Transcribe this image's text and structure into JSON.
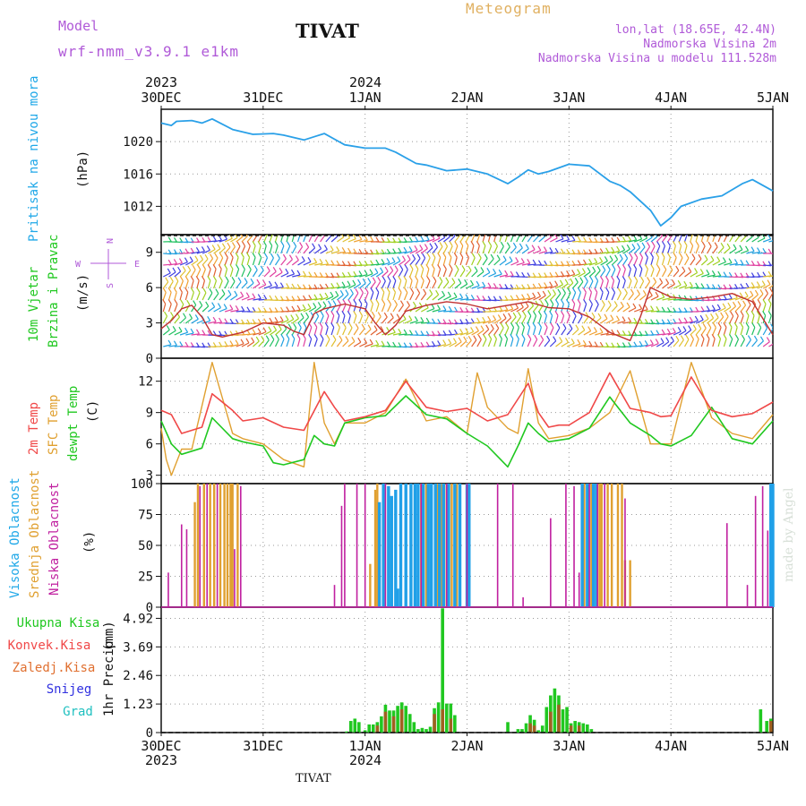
{
  "header": {
    "model_label": "Model",
    "model_name": "wrf-nmm_v3.9.1  e1km",
    "title": "TIVAT",
    "chart_kind": "Meteogram",
    "lonlat": "lon,lat (18.65E, 42.4N)",
    "elevation": "Nadmorska Visina 2m",
    "model_elevation": "Nadmorska Visina u modelu 111.528m"
  },
  "footer": {
    "station": "TIVAT",
    "credit": "made by Angel"
  },
  "time_axis": {
    "top_years": [
      "2023",
      "2024"
    ],
    "labels": [
      "30DEC",
      "31DEC",
      "1JAN",
      "2JAN",
      "3JAN",
      "4JAN",
      "5JAN"
    ],
    "bottom_years": [
      "2023",
      "2024"
    ]
  },
  "colors": {
    "pressure": "#2aa0e8",
    "temp2m": "#f04848",
    "sfc_temp": "#e0a030",
    "dewpt": "#20c820",
    "high_cloud": "#20a0e8",
    "mid_cloud": "#e0a030",
    "low_cloud": "#c020a0",
    "total_precip": "#20c820",
    "conv_precip": "#f04848",
    "frozen_precip": "#e07030",
    "snow": "#3030e0",
    "graupel": "#20c0c0"
  },
  "chart_data": [
    {
      "type": "line",
      "ylabel_name": "Pritisak na nivou mora",
      "ylabel_unit": "(hPa)",
      "yticks": [
        "1012",
        "1016",
        "1020"
      ],
      "ylim": [
        1008.5,
        1024
      ],
      "series": [
        {
          "name": "Pritisak na nivou mora",
          "x": [
            0,
            0.1,
            0.15,
            0.3,
            0.4,
            0.5,
            0.7,
            0.9,
            1.1,
            1.2,
            1.4,
            1.5,
            1.6,
            1.8,
            2.0,
            2.2,
            2.3,
            2.5,
            2.6,
            2.8,
            3.0,
            3.2,
            3.4,
            3.5,
            3.6,
            3.7,
            3.8,
            4.0,
            4.2,
            4.4,
            4.5,
            4.6,
            4.8,
            4.9,
            5.0,
            5.1,
            5.3,
            5.5,
            5.7,
            5.8,
            6.0
          ],
          "values": [
            1022.3,
            1022.0,
            1022.5,
            1022.6,
            1022.3,
            1022.8,
            1021.5,
            1020.9,
            1021.0,
            1020.8,
            1020.2,
            1020.6,
            1021.0,
            1019.6,
            1019.2,
            1019.2,
            1018.7,
            1017.3,
            1017.1,
            1016.4,
            1016.6,
            1016.0,
            1014.8,
            1015.6,
            1016.5,
            1016.0,
            1016.3,
            1017.2,
            1017.0,
            1015.1,
            1014.6,
            1013.8,
            1011.5,
            1009.6,
            1010.6,
            1012.0,
            1012.9,
            1013.3,
            1014.8,
            1015.3,
            1013.9
          ]
        }
      ]
    },
    {
      "type": "line",
      "ylabel_name": "10m Vjetar",
      "ylabel_name2": "Brzina i Pravac",
      "ylabel_unit": "(m/s)",
      "compass": {
        "n": "N",
        "s": "S",
        "e": "E",
        "w": "W"
      },
      "yticks": [
        "0",
        "3",
        "6",
        "9"
      ],
      "ylim": [
        0,
        10.5
      ],
      "series": [
        {
          "name": "wind speed",
          "x": [
            0,
            0.1,
            0.2,
            0.3,
            0.4,
            0.5,
            0.6,
            0.8,
            1.0,
            1.2,
            1.3,
            1.4,
            1.5,
            1.6,
            1.8,
            2.0,
            2.1,
            2.2,
            2.3,
            2.4,
            2.6,
            2.8,
            3.0,
            3.2,
            3.4,
            3.6,
            3.8,
            4.0,
            4.2,
            4.4,
            4.6,
            4.7,
            4.8,
            5.0,
            5.2,
            5.4,
            5.6,
            5.8,
            6.0
          ],
          "values": [
            2.5,
            3.2,
            4.2,
            4.5,
            3.5,
            2.0,
            1.8,
            2.2,
            3.0,
            2.8,
            2.3,
            2.0,
            3.8,
            4.2,
            4.6,
            4.2,
            3.0,
            2.0,
            2.8,
            4.0,
            4.5,
            4.8,
            4.6,
            4.2,
            4.5,
            4.8,
            4.3,
            4.2,
            3.5,
            2.2,
            1.5,
            3.5,
            6.0,
            5.2,
            5.0,
            5.2,
            5.5,
            4.8,
            2.0
          ]
        }
      ]
    },
    {
      "type": "line",
      "ylabel_name": "2m Temp",
      "ylabel_name2": "SFC Temp",
      "ylabel_name3": "dewpt Temp",
      "ylabel_unit": "(C)",
      "yticks": [
        "3",
        "6",
        "9",
        "12"
      ],
      "ylim": [
        2.2,
        14.2
      ],
      "series": [
        {
          "name": "2m Temp",
          "x": [
            0,
            0.1,
            0.2,
            0.4,
            0.5,
            0.7,
            0.8,
            1.0,
            1.2,
            1.4,
            1.6,
            1.7,
            1.8,
            2.0,
            2.2,
            2.4,
            2.6,
            2.8,
            3.0,
            3.2,
            3.4,
            3.6,
            3.7,
            3.8,
            3.9,
            4.0,
            4.2,
            4.4,
            4.6,
            4.8,
            4.9,
            5.0,
            5.2,
            5.4,
            5.6,
            5.8,
            6.0
          ],
          "values": [
            9.2,
            8.8,
            7.0,
            7.6,
            10.8,
            9.2,
            8.2,
            8.5,
            7.6,
            7.3,
            11.0,
            9.5,
            8.2,
            8.6,
            9.2,
            12.0,
            9.5,
            9.1,
            9.4,
            8.2,
            8.8,
            11.8,
            9.0,
            7.6,
            7.8,
            7.8,
            9.0,
            12.8,
            9.4,
            9.0,
            8.6,
            8.7,
            12.4,
            9.2,
            8.6,
            8.9,
            10.0
          ]
        },
        {
          "name": "SFC Temp",
          "x": [
            0,
            0.05,
            0.1,
            0.2,
            0.3,
            0.5,
            0.7,
            0.8,
            1.0,
            1.2,
            1.4,
            1.5,
            1.6,
            1.7,
            1.8,
            2.0,
            2.2,
            2.4,
            2.6,
            2.8,
            3.0,
            3.1,
            3.2,
            3.4,
            3.5,
            3.6,
            3.7,
            3.8,
            4.0,
            4.2,
            4.4,
            4.6,
            4.8,
            5.0,
            5.2,
            5.4,
            5.6,
            5.8,
            6.0
          ],
          "values": [
            7.5,
            4.5,
            3.0,
            5.5,
            5.5,
            13.8,
            7.0,
            6.5,
            6.0,
            4.5,
            3.8,
            13.8,
            8.0,
            6.0,
            8.0,
            8.0,
            9.0,
            12.2,
            8.2,
            8.6,
            7.0,
            12.8,
            9.5,
            7.5,
            7.0,
            13.2,
            8.0,
            6.5,
            6.8,
            7.5,
            9.0,
            13.0,
            6.0,
            6.0,
            13.8,
            8.5,
            7.0,
            6.5,
            8.8
          ]
        },
        {
          "name": "dewpt Temp",
          "x": [
            0,
            0.1,
            0.2,
            0.4,
            0.5,
            0.7,
            0.8,
            1.0,
            1.1,
            1.2,
            1.4,
            1.5,
            1.6,
            1.7,
            1.8,
            2.0,
            2.2,
            2.4,
            2.6,
            2.8,
            3.0,
            3.2,
            3.4,
            3.5,
            3.6,
            3.7,
            3.8,
            4.0,
            4.2,
            4.4,
            4.6,
            4.8,
            4.9,
            5.0,
            5.2,
            5.4,
            5.6,
            5.8,
            6.0
          ],
          "values": [
            8.2,
            6.0,
            5.0,
            5.6,
            8.5,
            6.5,
            6.2,
            5.8,
            4.2,
            4.0,
            4.5,
            6.8,
            6.0,
            5.8,
            8.0,
            8.5,
            8.7,
            10.6,
            8.8,
            8.4,
            7.0,
            5.8,
            3.8,
            5.8,
            8.0,
            7.0,
            6.2,
            6.5,
            7.5,
            10.5,
            8.0,
            6.8,
            6.0,
            5.8,
            6.8,
            9.5,
            6.5,
            6.0,
            8.2
          ]
        }
      ]
    },
    {
      "type": "bar",
      "ylabel_name": "Visoka Oblacnost",
      "ylabel_name2": "Srednja Oblacnost",
      "ylabel_name3": "Niska Oblacnost",
      "ylabel_unit": "(%)",
      "yticks": [
        "0",
        "25",
        "50",
        "75",
        "100"
      ],
      "ylim": [
        0,
        100
      ],
      "series": [
        {
          "name": "Niska Oblacnost",
          "x": [
            0.07,
            0.2,
            0.25,
            0.38,
            0.45,
            0.55,
            0.72,
            0.78,
            1.7,
            1.77,
            1.8,
            1.92,
            2.0,
            2.2,
            2.55,
            2.8,
            3.0,
            3.3,
            3.45,
            3.55,
            3.82,
            3.97,
            4.05,
            4.1,
            4.2,
            4.28,
            4.35,
            4.55,
            5.55,
            5.75,
            5.83,
            5.9,
            5.95
          ],
          "values": [
            28,
            67,
            63,
            98,
            100,
            100,
            47,
            98,
            18,
            82,
            100,
            100,
            100,
            100,
            100,
            100,
            100,
            100,
            100,
            8,
            72,
            100,
            98,
            28,
            100,
            100,
            100,
            88,
            68,
            18,
            90,
            98,
            62
          ]
        },
        {
          "name": "Srednja Oblacnost",
          "x": [
            0.33,
            0.36,
            0.42,
            0.48,
            0.52,
            0.58,
            0.62,
            0.65,
            0.68,
            0.7,
            0.75,
            2.05,
            2.1,
            2.12,
            2.55,
            2.6,
            2.65,
            2.7,
            2.72,
            2.75,
            2.8,
            2.85,
            2.9,
            4.15,
            4.22,
            4.3,
            4.32,
            4.38,
            4.42,
            4.48,
            4.52,
            4.55,
            4.6
          ],
          "values": [
            85,
            100,
            100,
            100,
            100,
            100,
            100,
            100,
            100,
            100,
            100,
            35,
            95,
            100,
            100,
            100,
            100,
            100,
            100,
            100,
            100,
            100,
            100,
            100,
            100,
            100,
            100,
            100,
            100,
            100,
            100,
            38,
            38
          ]
        },
        {
          "name": "Visoka Oblacnost",
          "x": [
            2.14,
            2.18,
            2.23,
            2.26,
            2.3,
            2.32,
            2.35,
            2.4,
            2.45,
            2.49,
            2.52,
            2.57,
            2.62,
            2.65,
            2.69,
            2.73,
            2.77,
            2.82,
            2.88,
            2.93,
            3.0,
            3.02,
            4.13,
            4.18,
            4.24,
            4.27,
            5.98,
            6.0
          ],
          "values": [
            85,
            100,
            98,
            90,
            95,
            15,
            100,
            100,
            100,
            100,
            100,
            100,
            100,
            100,
            100,
            100,
            100,
            100,
            100,
            100,
            100,
            100,
            100,
            100,
            100,
            100,
            100,
            100
          ]
        }
      ]
    },
    {
      "type": "bar",
      "ylabel_name": "1hr Precip",
      "ylabel_unit": "(mm)",
      "legend": [
        "Ukupna Kisa",
        "Konvek.Kisa",
        "Zaledj.Kisa",
        "Snijeg",
        "Grad"
      ],
      "yticks": [
        "0",
        "1.23",
        "2.46",
        "3.69",
        "4.92"
      ],
      "ylim": [
        0,
        5.4
      ],
      "series": [
        {
          "name": "Ukupna Kisa",
          "x": [
            1.82,
            1.86,
            1.9,
            1.94,
            2.0,
            2.04,
            2.08,
            2.12,
            2.16,
            2.2,
            2.24,
            2.28,
            2.32,
            2.36,
            2.4,
            2.44,
            2.48,
            2.52,
            2.56,
            2.6,
            2.64,
            2.68,
            2.72,
            2.76,
            2.8,
            2.84,
            2.88,
            3.4,
            3.5,
            3.54,
            3.58,
            3.62,
            3.66,
            3.7,
            3.74,
            3.78,
            3.82,
            3.86,
            3.9,
            3.94,
            3.98,
            4.02,
            4.06,
            4.1,
            4.14,
            4.18,
            4.22,
            5.88,
            5.94,
            5.98
          ],
          "values": [
            0.05,
            0.5,
            0.6,
            0.45,
            0.1,
            0.35,
            0.35,
            0.45,
            0.7,
            1.2,
            0.95,
            0.95,
            1.15,
            1.3,
            1.15,
            0.8,
            0.45,
            0.15,
            0.2,
            0.15,
            0.25,
            1.05,
            1.3,
            5.35,
            1.25,
            1.25,
            0.75,
            0.45,
            0.15,
            0.15,
            0.4,
            0.75,
            0.55,
            0.1,
            0.3,
            1.1,
            1.6,
            1.9,
            1.6,
            1.0,
            1.1,
            0.4,
            0.5,
            0.45,
            0.4,
            0.35,
            0.15,
            1.0,
            0.5,
            0.6
          ]
        },
        {
          "name": "Konvek.Kisa",
          "x": [
            2.12,
            2.2,
            2.28,
            2.36,
            2.68,
            2.76,
            2.84,
            3.62,
            3.66,
            3.82,
            3.9,
            4.02,
            4.1,
            5.98
          ],
          "values": [
            0.3,
            0.9,
            0.7,
            1.0,
            0.8,
            1.0,
            0.6,
            0.4,
            0.3,
            0.9,
            1.2,
            0.3,
            0.3,
            0.5
          ]
        }
      ]
    }
  ]
}
